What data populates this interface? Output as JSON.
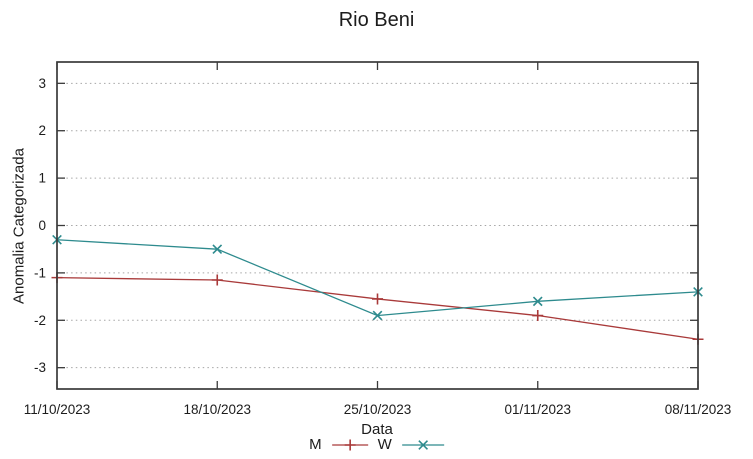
{
  "chart_data": {
    "type": "line",
    "title": "Rio Beni",
    "xlabel": "Data",
    "ylabel": "Anomalia Categorizada",
    "categories": [
      "11/10/2023",
      "18/10/2023",
      "25/10/2023",
      "01/11/2023",
      "08/11/2023"
    ],
    "series": [
      {
        "name": "M",
        "marker": "plus",
        "color": "#a93a3a",
        "values": [
          -1.1,
          -1.15,
          -1.55,
          -1.9,
          -2.4
        ]
      },
      {
        "name": "W",
        "marker": "cross",
        "color": "#2e8b8e",
        "values": [
          -0.3,
          -0.5,
          -1.9,
          -1.6,
          -1.4
        ]
      }
    ],
    "yticks": [
      3,
      2,
      1,
      0,
      -1,
      -2,
      -3
    ],
    "ylim": [
      -3.45,
      3.45
    ],
    "grid": "horizontal-dotted",
    "legend_position": "below-x-axis-centered",
    "axis_color": "#3a3a3a",
    "grid_color": "#a6a6a6"
  }
}
